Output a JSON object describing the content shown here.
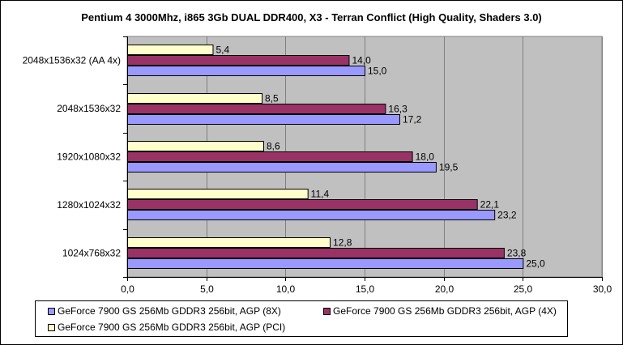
{
  "chart_data": {
    "type": "bar",
    "orientation": "horizontal",
    "title": "Pentium 4 3000Mhz, i865 3Gb DUAL DDR400, X3 - Terran Conflict (High Quality, Shaders 3.0)",
    "categories": [
      "2048x1536x32 (AA 4x)",
      "2048x1536x32",
      "1920x1080x32",
      "1280x1024x32",
      "1024x768x32"
    ],
    "series": [
      {
        "name": "GeForce 7900 GS 256Mb GDDR3 256bit, AGP (PCI)",
        "color": "#FFFFCC",
        "values": [
          5.4,
          8.5,
          8.6,
          11.4,
          12.8
        ],
        "labels": [
          "5,4",
          "8,5",
          "8,6",
          "11,4",
          "12,8"
        ]
      },
      {
        "name": "GeForce 7900 GS 256Mb GDDR3 256bit, AGP (4X)",
        "color": "#993366",
        "values": [
          14.0,
          16.3,
          18.0,
          22.1,
          23.8
        ],
        "labels": [
          "14,0",
          "16,3",
          "18,0",
          "22,1",
          "23,8"
        ]
      },
      {
        "name": "GeForce 7900 GS 256Mb GDDR3 256bit, AGP (8X)",
        "color": "#9999FF",
        "values": [
          15.0,
          17.2,
          19.5,
          23.2,
          25.0
        ],
        "labels": [
          "15,0",
          "17,2",
          "19,5",
          "23,2",
          "25,0"
        ]
      }
    ],
    "xlim": [
      0,
      30
    ],
    "xticks": [
      "0,0",
      "5,0",
      "10,0",
      "15,0",
      "20,0",
      "25,0",
      "30,0"
    ],
    "grid": true,
    "plot_background": "#C0C0C0",
    "legend_position": "bottom"
  }
}
